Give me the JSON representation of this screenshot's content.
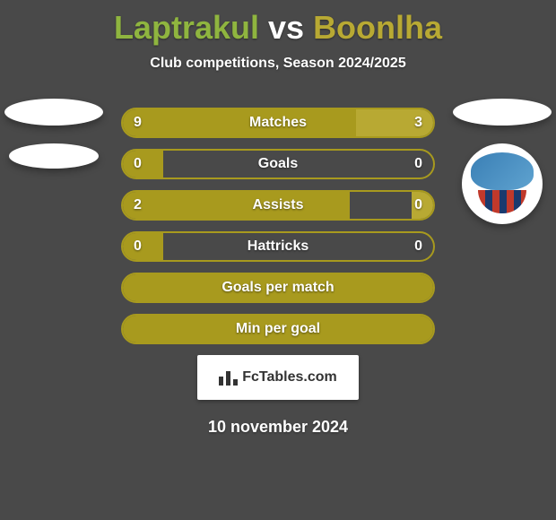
{
  "colors": {
    "background": "#494949",
    "player1_accent": "#8fb53f",
    "player2_accent": "#b8a933",
    "bar_border": "#a89a1e",
    "bar_fill_left": "#a89a1e",
    "bar_fill_right": "#b8a933",
    "text": "#ffffff",
    "logo_bg": "#ffffff",
    "fctables_text": "#333333"
  },
  "typography": {
    "title_fontsize": 36,
    "subtitle_fontsize": 16,
    "stat_label_fontsize": 16,
    "stat_value_fontsize": 16,
    "date_fontsize": 18
  },
  "header": {
    "player1": "Laptrakul",
    "vs": "vs",
    "player2": "Boonlha",
    "subtitle": "Club competitions, Season 2024/2025"
  },
  "stats": [
    {
      "label": "Matches",
      "left_value": "9",
      "right_value": "3",
      "left_pct": 75,
      "right_pct": 25,
      "show_fills": true
    },
    {
      "label": "Goals",
      "left_value": "0",
      "right_value": "0",
      "left_pct": 13,
      "right_pct": 0,
      "show_fills": true
    },
    {
      "label": "Assists",
      "left_value": "2",
      "right_value": "0",
      "left_pct": 73,
      "right_pct": 7,
      "show_fills": true
    },
    {
      "label": "Hattricks",
      "left_value": "0",
      "right_value": "0",
      "left_pct": 13,
      "right_pct": 0,
      "show_fills": true
    },
    {
      "label": "Goals per match",
      "left_value": "",
      "right_value": "",
      "left_pct": 100,
      "right_pct": 0,
      "show_fills": true
    },
    {
      "label": "Min per goal",
      "left_value": "",
      "right_value": "",
      "left_pct": 100,
      "right_pct": 0,
      "show_fills": true
    }
  ],
  "footer": {
    "brand": "FcTables.com",
    "date": "10 november 2024"
  }
}
